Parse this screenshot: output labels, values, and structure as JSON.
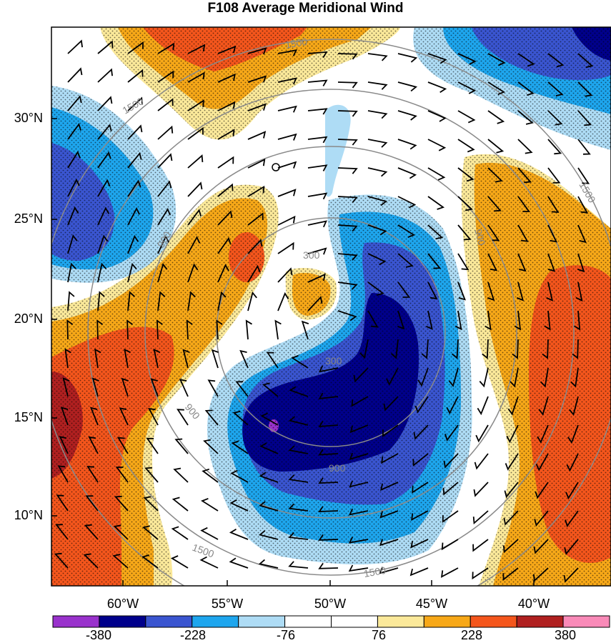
{
  "title": "F108 Average Meridional Wind",
  "lat_labels": [
    "30°N",
    "25°N",
    "20°N",
    "15°N",
    "10°N"
  ],
  "lon_labels": [
    "60°W",
    "55°W",
    "50°W",
    "45°W",
    "40°W"
  ],
  "colorbar": {
    "labels": [
      "-380",
      "-228",
      "-76",
      "76",
      "228",
      "380"
    ],
    "colors": [
      "#9932cc",
      "#00008b",
      "#3a55d0",
      "#1ea6ee",
      "#aedcf5",
      "#ffffff",
      "#ffffff",
      "#fbe99a",
      "#f7a818",
      "#f4561c",
      "#b02020",
      "#f98ab8"
    ]
  },
  "contour_labels": [
    "300",
    "300",
    "900",
    "900",
    "900",
    "900",
    "1500",
    "1500",
    "1500",
    "1500",
    "1500"
  ]
}
